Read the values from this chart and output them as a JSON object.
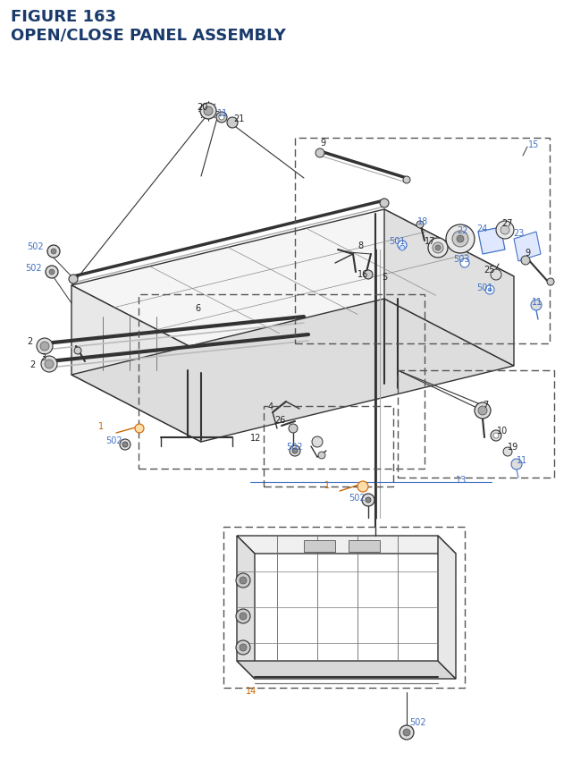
{
  "title_line1": "FIGURE 163",
  "title_line2": "OPEN/CLOSE PANEL ASSEMBLY",
  "title_color": "#1a3a6b",
  "title_fontsize": 13,
  "bg_color": "#ffffff",
  "figsize": [
    6.4,
    8.62
  ],
  "dpi": 100
}
